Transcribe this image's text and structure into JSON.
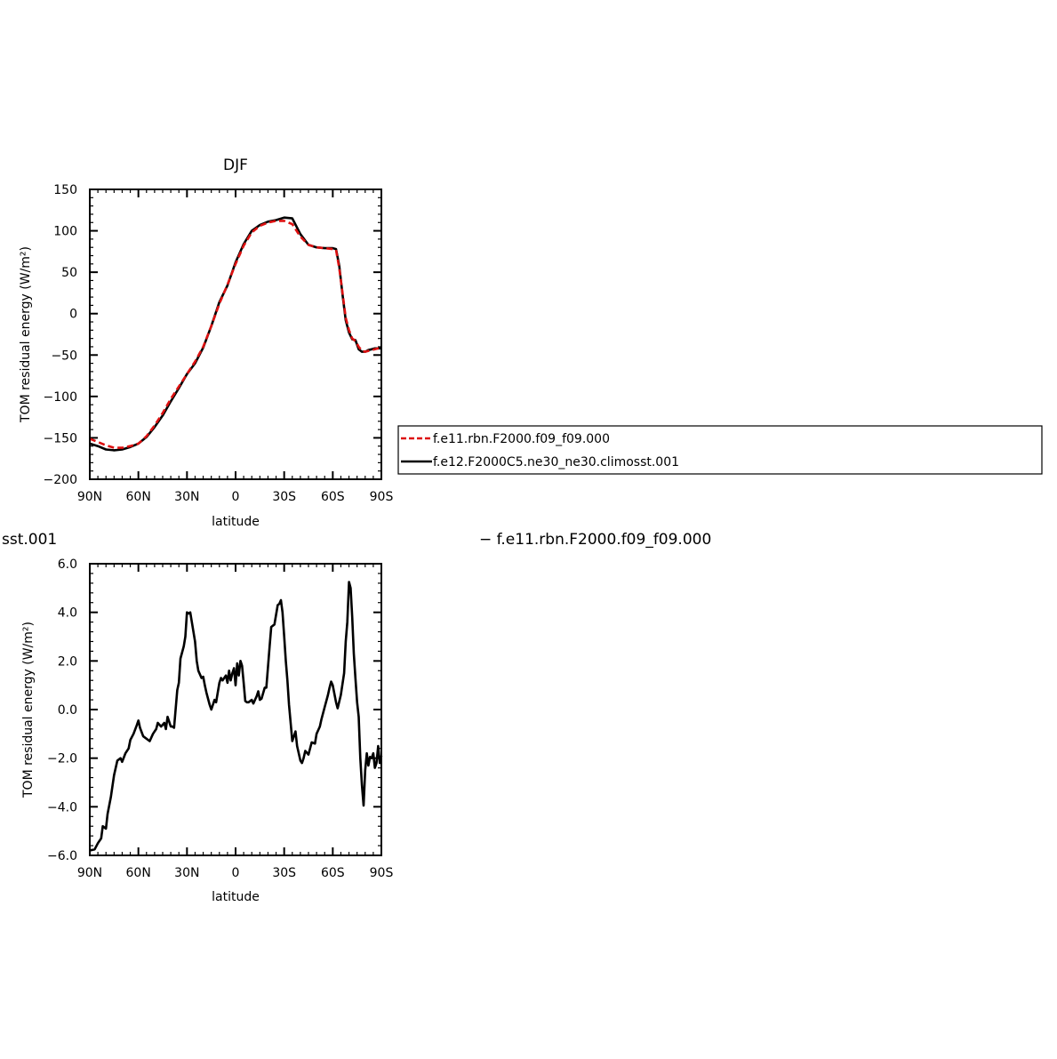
{
  "chart_data": [
    {
      "type": "line",
      "title": "DJF",
      "xlabel": "latitude",
      "ylabel": "TOM residual energy (W/m²)",
      "xlim": [
        -90,
        90
      ],
      "ylim": [
        -200,
        150
      ],
      "x_ticks": [
        -90,
        -60,
        -30,
        0,
        30,
        60,
        90
      ],
      "x_tick_labels": [
        "90N",
        "60N",
        "30N",
        "0",
        "30S",
        "60S",
        "90S"
      ],
      "y_ticks": [
        -200,
        -150,
        -100,
        -50,
        0,
        50,
        100,
        150
      ],
      "y_tick_labels": [
        "−200",
        "−150",
        "−100",
        "−50",
        "0",
        "50",
        "100",
        "150"
      ],
      "legend": "right, outside plot",
      "series": [
        {
          "name": "f.e11.rbn.F2000.f09_f09.000",
          "color": "#dd1111",
          "dash": "dashed",
          "x": [
            -90,
            -85,
            -80,
            -75,
            -70,
            -65,
            -60,
            -55,
            -50,
            -45,
            -40,
            -35,
            -30,
            -25,
            -20,
            -15,
            -10,
            -5,
            0,
            5,
            10,
            15,
            20,
            25,
            30,
            35,
            40,
            45,
            50,
            55,
            60,
            62,
            64,
            66,
            68,
            70,
            72,
            74,
            76,
            78,
            80,
            82,
            84,
            86,
            88,
            90
          ],
          "y": [
            -151,
            -155,
            -159,
            -162,
            -162,
            -160,
            -157,
            -148,
            -135,
            -120,
            -103,
            -88,
            -73,
            -58,
            -40,
            -15,
            12,
            35,
            60,
            82,
            98,
            106,
            110,
            112,
            112,
            108,
            93,
            83,
            80,
            79,
            78,
            77,
            55,
            25,
            -5,
            -20,
            -30,
            -33,
            -40,
            -45,
            -46,
            -45,
            -44,
            -43,
            -42,
            -41
          ]
        },
        {
          "name": "f.e12.F2000C5.ne30_ne30.climosst.001",
          "color": "#000000",
          "dash": "solid",
          "x": [
            -90,
            -85,
            -80,
            -75,
            -70,
            -65,
            -60,
            -55,
            -50,
            -45,
            -40,
            -35,
            -30,
            -25,
            -20,
            -15,
            -10,
            -5,
            0,
            5,
            10,
            15,
            20,
            25,
            30,
            35,
            40,
            45,
            50,
            55,
            60,
            62,
            64,
            66,
            68,
            70,
            72,
            74,
            76,
            78,
            80,
            82,
            84,
            86,
            88,
            90
          ],
          "y": [
            -157,
            -160,
            -164,
            -165,
            -164,
            -161,
            -157,
            -149,
            -137,
            -123,
            -106,
            -90,
            -73,
            -60,
            -41,
            -15,
            14,
            34,
            62,
            84,
            100,
            107,
            111,
            113,
            116,
            115,
            96,
            83,
            80,
            79,
            79,
            78,
            58,
            23,
            -8,
            -23,
            -31,
            -32,
            -43,
            -46,
            -46,
            -44,
            -43,
            -42,
            -42,
            -42
          ]
        }
      ]
    },
    {
      "type": "line",
      "title": "",
      "xlabel": "latitude",
      "ylabel": "TOM residual energy (W/m²)",
      "xlim": [
        -90,
        90
      ],
      "ylim": [
        -6,
        6
      ],
      "x_ticks": [
        -90,
        -60,
        -30,
        0,
        30,
        60,
        90
      ],
      "x_tick_labels": [
        "90N",
        "60N",
        "30N",
        "0",
        "30S",
        "60S",
        "90S"
      ],
      "y_ticks": [
        -6,
        -4,
        -2,
        0,
        2,
        4,
        6
      ],
      "y_tick_labels": [
        "−6.0",
        "−4.0",
        "−2.0",
        "0.0",
        "2.0",
        "4.0",
        "6.0"
      ],
      "header_left": "sst.001",
      "header_right": "− f.e11.rbn.F2000.f09_f09.000",
      "series": [
        {
          "color": "#000000",
          "x": [
            -90,
            -87,
            -85,
            -83,
            -82,
            -80,
            -79,
            -77,
            -75,
            -73,
            -71,
            -70,
            -68,
            -66,
            -65,
            -63,
            -61,
            -60,
            -59,
            -57,
            -55,
            -53,
            -51,
            -49,
            -48,
            -46,
            -44,
            -43,
            -42,
            -40,
            -39,
            -38,
            -36,
            -35,
            -34,
            -32,
            -31,
            -30,
            -29,
            -28,
            -27,
            -25,
            -24,
            -23,
            -21,
            -20,
            -19,
            -18,
            -16,
            -15,
            -13,
            -12,
            -10,
            -9,
            -8,
            -6,
            -5,
            -4,
            -3,
            -2,
            -1,
            0,
            1,
            2,
            3,
            4,
            5,
            6,
            7,
            8,
            10,
            11,
            13,
            14,
            15,
            16,
            18,
            19,
            21,
            22,
            24,
            26,
            27,
            28,
            29,
            30,
            31,
            32,
            33,
            35,
            37,
            38,
            40,
            41,
            42,
            43,
            45,
            47,
            49,
            50,
            52,
            53,
            55,
            57,
            58,
            59,
            60,
            62,
            63,
            65,
            67,
            68,
            69,
            70,
            71,
            72,
            73,
            74,
            75,
            76,
            77,
            78,
            79,
            80,
            81,
            82,
            83,
            84,
            85,
            86,
            87,
            88,
            89,
            90
          ],
          "y": [
            -5.8,
            -5.75,
            -5.5,
            -5.3,
            -4.8,
            -4.9,
            -4.3,
            -3.6,
            -2.7,
            -2.1,
            -2.0,
            -2.15,
            -1.8,
            -1.6,
            -1.25,
            -1.0,
            -0.65,
            -0.45,
            -0.75,
            -1.1,
            -1.2,
            -1.3,
            -1.0,
            -0.8,
            -0.55,
            -0.7,
            -0.55,
            -0.8,
            -0.3,
            -0.7,
            -0.7,
            -0.75,
            0.8,
            1.1,
            2.1,
            2.6,
            3.0,
            4.0,
            3.95,
            4.0,
            3.6,
            2.8,
            2.0,
            1.6,
            1.3,
            1.35,
            1.0,
            0.7,
            0.2,
            0.0,
            0.4,
            0.3,
            1.1,
            1.3,
            1.2,
            1.4,
            1.1,
            1.6,
            1.2,
            1.5,
            1.7,
            1.0,
            1.9,
            1.4,
            2.0,
            1.8,
            1.1,
            0.35,
            0.3,
            0.3,
            0.4,
            0.25,
            0.55,
            0.75,
            0.4,
            0.45,
            0.9,
            0.9,
            2.6,
            3.4,
            3.5,
            4.3,
            4.35,
            4.5,
            4.0,
            3.0,
            2.0,
            1.2,
            0.2,
            -1.3,
            -0.9,
            -1.5,
            -2.1,
            -2.2,
            -2.0,
            -1.7,
            -1.85,
            -1.35,
            -1.4,
            -1.0,
            -0.7,
            -0.4,
            0.1,
            0.6,
            0.9,
            1.15,
            1.0,
            0.3,
            0.05,
            0.6,
            1.5,
            2.8,
            3.6,
            5.25,
            5.0,
            3.8,
            2.3,
            1.3,
            0.3,
            -0.3,
            -2.0,
            -3.1,
            -3.95,
            -2.5,
            -1.8,
            -2.3,
            -1.95,
            -2.0,
            -1.8,
            -2.4,
            -2.2,
            -1.5,
            -2.2,
            -1.9
          ]
        }
      ]
    }
  ]
}
